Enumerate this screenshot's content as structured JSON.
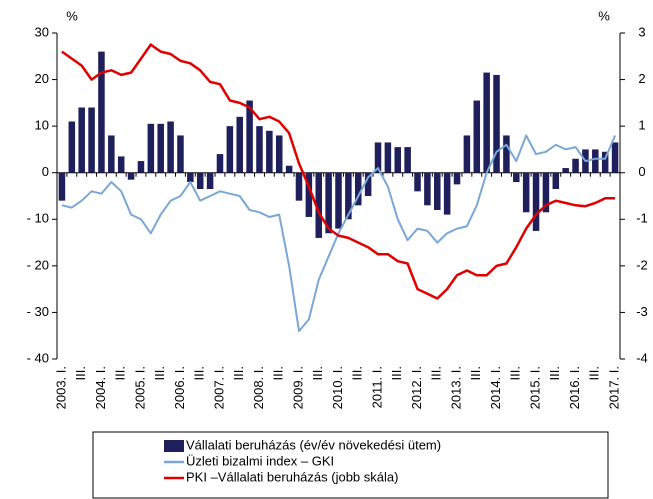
{
  "chart_data": {
    "type": "bar_line",
    "y_label": "%",
    "y2_label": "%",
    "categories": [
      "2003. I.",
      null,
      "III.",
      null,
      "2004. I.",
      null,
      "III.",
      null,
      "2005. I.",
      null,
      "III.",
      null,
      "2006. I.",
      null,
      "III.",
      null,
      "2007. I.",
      null,
      "III.",
      null,
      "2008. I.",
      null,
      "III.",
      null,
      "2009. I.",
      null,
      "III.",
      null,
      "2010. I.",
      null,
      "III.",
      null,
      "2011. I.",
      null,
      "III.",
      null,
      "2012. I.",
      null,
      "III.",
      null,
      "2013. I.",
      null,
      "III.",
      null,
      "2014. I.",
      null,
      "III.",
      null,
      "2015. I.",
      null,
      "III.",
      null,
      "2016. I.",
      null,
      "III.",
      null,
      "2017. I."
    ],
    "series": [
      {
        "name": "Vállalati beruházás (év/év növekedési ütem)",
        "type": "bar",
        "color": "#1f1f5c",
        "values": [
          -6,
          11,
          14,
          14,
          26,
          8,
          3.5,
          -1.5,
          2.5,
          10.5,
          10.5,
          11,
          8,
          -2,
          -3.5,
          -3.5,
          4,
          10,
          12,
          15.5,
          10,
          9,
          8,
          1.5,
          -6,
          -9.5,
          -14,
          -13,
          -12,
          -10,
          -7,
          -5,
          6.5,
          6.5,
          5.5,
          5.5,
          -4,
          -7,
          -8,
          -9,
          -2.5,
          8,
          15.5,
          21.5,
          21,
          8,
          -2,
          -8.5,
          -12.5,
          -8.5,
          -3.5,
          1,
          3,
          5,
          5,
          4.5,
          6.5
        ]
      },
      {
        "name": "Üzleti bizalmi index – GKI",
        "type": "line",
        "color": "#7ba7d7",
        "values": [
          -7,
          -7.5,
          -6,
          -4,
          -4.5,
          -2,
          -4,
          -9,
          -10,
          -13,
          -9,
          -6,
          -5,
          -2,
          -6,
          -5,
          -4,
          -4.5,
          -5,
          -8,
          -8.5,
          -9.5,
          -9,
          -20,
          -34,
          -31.5,
          -23,
          -18,
          -13,
          -9,
          -5,
          -1,
          1,
          -3,
          -10,
          -14.5,
          -12,
          -12.5,
          -15,
          -13,
          -12,
          -11.5,
          -7,
          0,
          4.5,
          6,
          2.5,
          8,
          4,
          4.5,
          6,
          5,
          5.5,
          2.5,
          3,
          3,
          8
        ]
      },
      {
        "name": "PKI –Vállalati beruházás (jobb skála)",
        "type": "line",
        "axis": "y2",
        "color": "#e00000",
        "values": [
          2.6,
          2.45,
          2.3,
          2.0,
          2.15,
          2.2,
          2.1,
          2.15,
          2.45,
          2.75,
          2.6,
          2.55,
          2.4,
          2.35,
          2.2,
          1.95,
          1.9,
          1.55,
          1.5,
          1.4,
          1.15,
          1.2,
          1.1,
          0.85,
          0.2,
          -0.3,
          -0.85,
          -1.2,
          -1.35,
          -1.4,
          -1.5,
          -1.6,
          -1.75,
          -1.75,
          -1.9,
          -1.95,
          -2.5,
          -2.6,
          -2.7,
          -2.5,
          -2.2,
          -2.1,
          -2.2,
          -2.2,
          -2.0,
          -1.95,
          -1.6,
          -1.2,
          -0.9,
          -0.7,
          -0.6,
          -0.65,
          -0.7,
          -0.72,
          -0.65,
          -0.55,
          -0.55
        ]
      }
    ],
    "ylim": [
      -40,
      30
    ],
    "yticks": [
      {
        "value": -40,
        "label": "- 40"
      },
      {
        "value": -30,
        "label": "- 30"
      },
      {
        "value": -20,
        "label": "- 20"
      },
      {
        "value": -10,
        "label": "- 10"
      },
      0,
      10,
      20,
      30
    ],
    "y2lim": [
      -4,
      3
    ],
    "y2ticks": [
      -4,
      -3,
      -2,
      -1,
      0,
      1,
      2,
      3
    ],
    "legend": "bottom"
  }
}
